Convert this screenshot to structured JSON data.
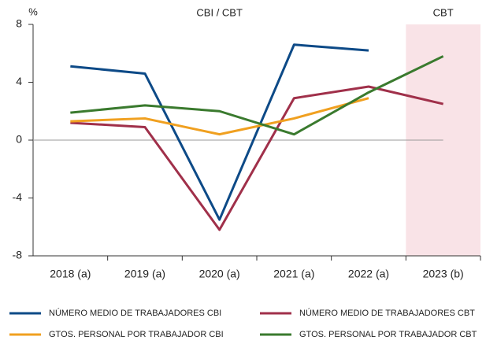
{
  "chart_data": {
    "type": "line",
    "y_label": "%",
    "annotations": [
      "CBI / CBT",
      "CBT"
    ],
    "shaded_category": 5,
    "shade_color": "#f9e3e7",
    "categories": [
      "2018 (a)",
      "2019 (a)",
      "2020 (a)",
      "2021 (a)",
      "2022 (a)",
      "2023 (b)"
    ],
    "series": [
      {
        "name": "NÚMERO MEDIO DE TRABAJADORES CBI",
        "color": "#0d4a87",
        "values": [
          5.1,
          4.6,
          -5.5,
          6.6,
          6.2,
          null
        ]
      },
      {
        "name": "NÚMERO MEDIO DE TRABAJADORES CBT",
        "color": "#a0304a",
        "values": [
          1.2,
          0.9,
          -6.2,
          2.9,
          3.7,
          2.5
        ]
      },
      {
        "name": "GTOS. PERSONAL POR TRABAJADOR CBI",
        "color": "#f0a020",
        "values": [
          1.3,
          1.5,
          0.4,
          1.5,
          2.9,
          null
        ]
      },
      {
        "name": "GTOS. PERSONAL POR TRABAJADOR CBT",
        "color": "#3a7a2e",
        "values": [
          1.9,
          2.4,
          2.0,
          0.4,
          3.3,
          5.8
        ]
      }
    ],
    "ylim": [
      -8,
      8
    ],
    "yticks": [
      -8,
      -4,
      0,
      4,
      8
    ]
  }
}
